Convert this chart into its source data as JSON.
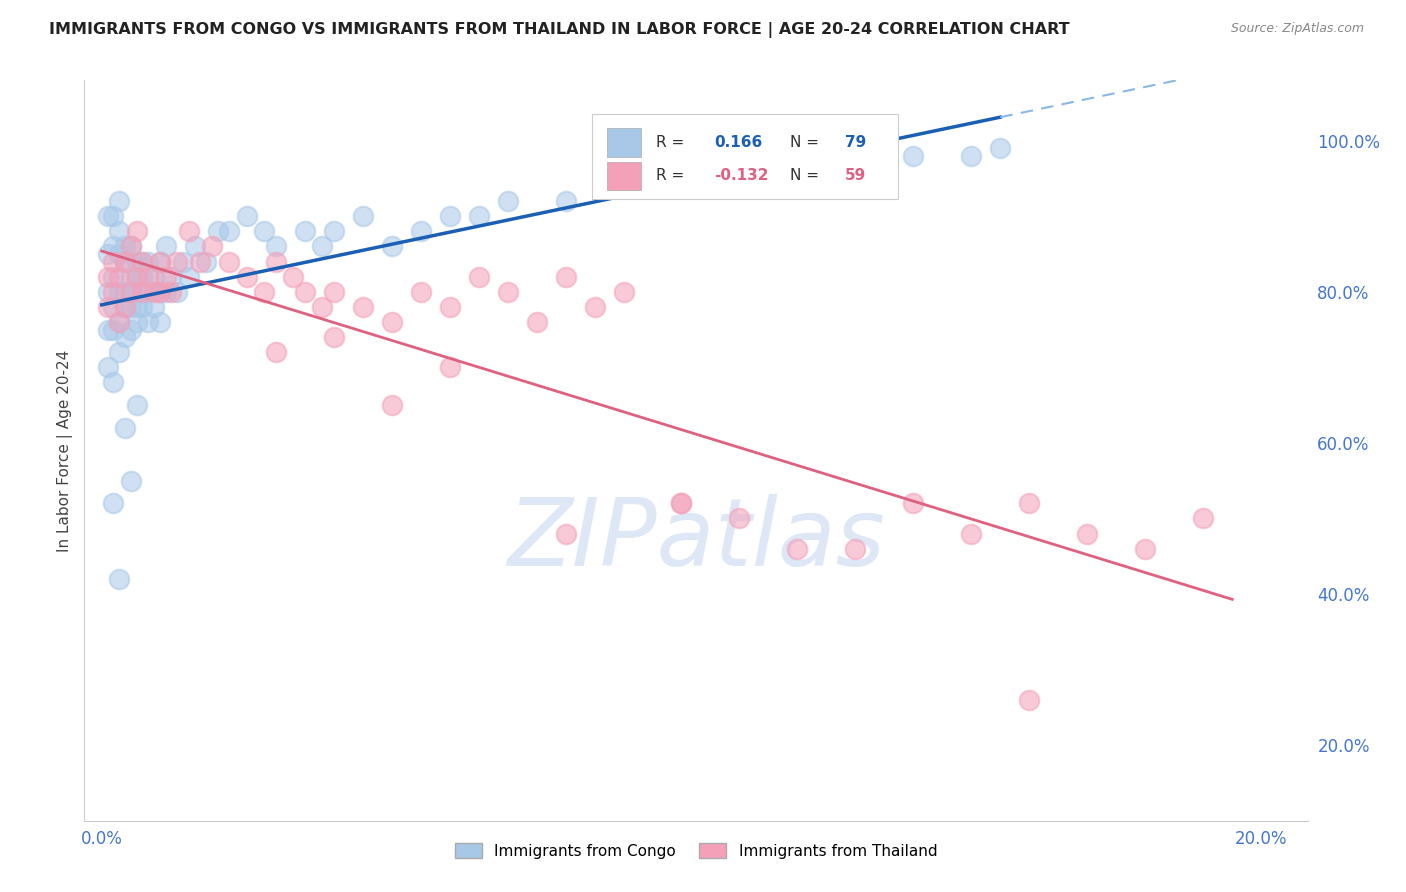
{
  "title": "IMMIGRANTS FROM CONGO VS IMMIGRANTS FROM THAILAND IN LABOR FORCE | AGE 20-24 CORRELATION CHART",
  "source_text": "Source: ZipAtlas.com",
  "ylabel": "In Labor Force | Age 20-24",
  "congo_R": 0.166,
  "congo_N": 79,
  "thailand_R": -0.132,
  "thailand_N": 59,
  "congo_color": "#a8c8e8",
  "thailand_color": "#f4a0b8",
  "congo_line_color": "#1a5fb4",
  "thailand_line_color": "#e06080",
  "trend_dash_color": "#88b8e8",
  "watermark_text": "ZIPatlas",
  "watermark_color": "#c8d8f0",
  "background_color": "#ffffff",
  "grid_color": "#d8d8d8",
  "title_color": "#222222",
  "source_color": "#888888",
  "axis_label_color": "#4477cc",
  "ylabel_color": "#444444",
  "legend_edge_color": "#cccccc",
  "congo_x": [
    0.001,
    0.001,
    0.001,
    0.001,
    0.001,
    0.002,
    0.002,
    0.002,
    0.002,
    0.002,
    0.002,
    0.003,
    0.003,
    0.003,
    0.003,
    0.003,
    0.003,
    0.004,
    0.004,
    0.004,
    0.004,
    0.004,
    0.005,
    0.005,
    0.005,
    0.005,
    0.005,
    0.006,
    0.006,
    0.006,
    0.006,
    0.007,
    0.007,
    0.007,
    0.007,
    0.008,
    0.008,
    0.008,
    0.009,
    0.009,
    0.01,
    0.01,
    0.01,
    0.011,
    0.011,
    0.012,
    0.013,
    0.014,
    0.015,
    0.016,
    0.018,
    0.02,
    0.022,
    0.025,
    0.028,
    0.03,
    0.035,
    0.038,
    0.04,
    0.045,
    0.05,
    0.055,
    0.06,
    0.065,
    0.07,
    0.08,
    0.09,
    0.1,
    0.11,
    0.12,
    0.13,
    0.14,
    0.15,
    0.155,
    0.002,
    0.003,
    0.004,
    0.005,
    0.006
  ],
  "congo_y": [
    0.8,
    0.85,
    0.9,
    0.75,
    0.7,
    0.82,
    0.78,
    0.86,
    0.9,
    0.75,
    0.68,
    0.8,
    0.85,
    0.76,
    0.72,
    0.88,
    0.92,
    0.78,
    0.84,
    0.8,
    0.74,
    0.86,
    0.82,
    0.78,
    0.86,
    0.8,
    0.75,
    0.82,
    0.78,
    0.84,
    0.76,
    0.8,
    0.84,
    0.78,
    0.82,
    0.8,
    0.76,
    0.84,
    0.82,
    0.78,
    0.8,
    0.84,
    0.76,
    0.8,
    0.86,
    0.82,
    0.8,
    0.84,
    0.82,
    0.86,
    0.84,
    0.88,
    0.88,
    0.9,
    0.88,
    0.86,
    0.88,
    0.86,
    0.88,
    0.9,
    0.86,
    0.88,
    0.9,
    0.9,
    0.92,
    0.92,
    0.94,
    0.95,
    0.96,
    0.97,
    0.97,
    0.98,
    0.98,
    0.99,
    0.52,
    0.42,
    0.62,
    0.55,
    0.65
  ],
  "thailand_x": [
    0.001,
    0.001,
    0.002,
    0.002,
    0.003,
    0.003,
    0.004,
    0.004,
    0.005,
    0.005,
    0.006,
    0.006,
    0.007,
    0.007,
    0.008,
    0.009,
    0.01,
    0.01,
    0.011,
    0.012,
    0.013,
    0.015,
    0.017,
    0.019,
    0.022,
    0.025,
    0.028,
    0.03,
    0.033,
    0.035,
    0.038,
    0.04,
    0.045,
    0.05,
    0.055,
    0.06,
    0.065,
    0.07,
    0.075,
    0.08,
    0.085,
    0.09,
    0.1,
    0.11,
    0.12,
    0.13,
    0.14,
    0.15,
    0.16,
    0.17,
    0.18,
    0.19,
    0.05,
    0.06,
    0.03,
    0.04,
    0.08,
    0.1,
    0.16
  ],
  "thailand_y": [
    0.82,
    0.78,
    0.84,
    0.8,
    0.82,
    0.76,
    0.84,
    0.78,
    0.8,
    0.86,
    0.82,
    0.88,
    0.8,
    0.84,
    0.82,
    0.8,
    0.84,
    0.8,
    0.82,
    0.8,
    0.84,
    0.88,
    0.84,
    0.86,
    0.84,
    0.82,
    0.8,
    0.84,
    0.82,
    0.8,
    0.78,
    0.8,
    0.78,
    0.76,
    0.8,
    0.78,
    0.82,
    0.8,
    0.76,
    0.82,
    0.78,
    0.8,
    0.52,
    0.5,
    0.46,
    0.46,
    0.52,
    0.48,
    0.52,
    0.48,
    0.46,
    0.5,
    0.65,
    0.7,
    0.72,
    0.74,
    0.48,
    0.52,
    0.26
  ],
  "xlim": [
    -0.003,
    0.208
  ],
  "ylim": [
    0.1,
    1.08
  ],
  "yticks": [
    0.2,
    0.4,
    0.6,
    0.8,
    1.0
  ],
  "yticklabels": [
    "20.0%",
    "40.0%",
    "60.0%",
    "80.0%",
    "100.0%"
  ],
  "xticks": [
    0.0,
    0.2
  ],
  "xticklabels": [
    "0.0%",
    "20.0%"
  ]
}
